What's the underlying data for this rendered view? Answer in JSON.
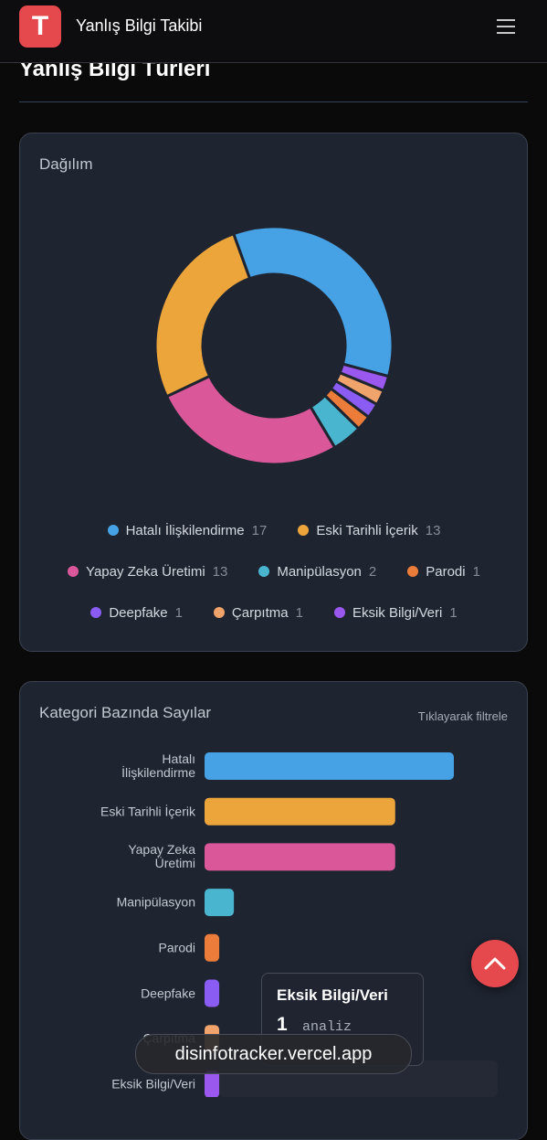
{
  "header": {
    "logo": "T",
    "title": "Yanlış Bilgi Takibi"
  },
  "section_title": "Yanlış Bilgi Türleri",
  "chart_data": [
    {
      "type": "pie",
      "title": "Dağılım",
      "categories": [
        "Hatalı İlişkilendirme",
        "Eski Tarihli İçerik",
        "Yapay Zeka Üretimi",
        "Manipülasyon",
        "Parodi",
        "Deepfake",
        "Çarpıtma",
        "Eksik Bilgi/Veri"
      ],
      "values": [
        17,
        13,
        13,
        2,
        1,
        1,
        1,
        1
      ],
      "colors": [
        "#47a1e5",
        "#eca53b",
        "#da5799",
        "#4ab5cf",
        "#ec7c3a",
        "#8a5cf3",
        "#f0a36a",
        "#9a58ee"
      ]
    },
    {
      "type": "bar",
      "title": "Kategori Bazında Sayılar",
      "subtitle": "Tıklayarak filtrele",
      "categories": [
        [
          "Hatalı",
          "İlişkilendirme"
        ],
        [
          "Eski Tarihli İçerik"
        ],
        [
          "Yapay Zeka",
          "Üretimi"
        ],
        [
          "Manipülasyon"
        ],
        [
          "Parodi"
        ],
        [
          "Deepfake"
        ],
        [
          "Çarpıtma"
        ],
        [
          "Eksik Bilgi/Veri"
        ]
      ],
      "values": [
        17,
        13,
        13,
        2,
        1,
        1,
        1,
        1
      ],
      "colors": [
        "#47a1e5",
        "#eca53b",
        "#da5799",
        "#4ab5cf",
        "#ec7c3a",
        "#8a5cf3",
        "#f0a36a",
        "#9a58ee"
      ]
    }
  ],
  "tooltip": {
    "title": "Eksik Bilgi/Veri",
    "value": 1,
    "unit": "analiz"
  },
  "url_bar": "disinfotracker.vercel.app"
}
